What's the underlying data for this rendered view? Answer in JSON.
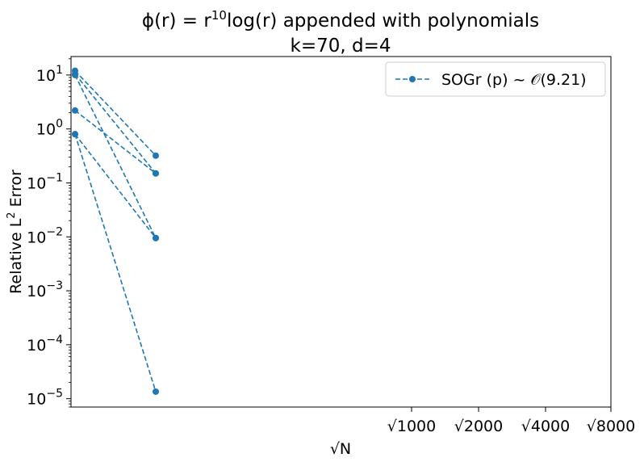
{
  "chart_data": {
    "type": "line",
    "title_line1_prefix": "ϕ(r) = r",
    "title_line1_sup": "10",
    "title_line1_suffix": "log(r) appended with polynomials",
    "title_line2": "k=70, d=4",
    "xlabel": "√N",
    "ylabel_prefix": "Relative L",
    "ylabel_sup": "2",
    "ylabel_suffix": " Error",
    "yscale": "log",
    "ylim": [
      7e-06,
      22
    ],
    "xticks": [
      "√1000",
      "√2000",
      "√4000",
      "√8000"
    ],
    "yticks": [
      {
        "base": "10",
        "exp": "1",
        "value": 10
      },
      {
        "base": "10",
        "exp": "0",
        "value": 1
      },
      {
        "base": "10",
        "exp": "−1",
        "value": 0.1
      },
      {
        "base": "10",
        "exp": "−2",
        "value": 0.01
      },
      {
        "base": "10",
        "exp": "−3",
        "value": 0.001
      },
      {
        "base": "10",
        "exp": "−4",
        "value": 0.0001
      },
      {
        "base": "10",
        "exp": "−5",
        "value": 1e-05
      }
    ],
    "legend": {
      "position": "top-right",
      "label": "SOGr (p) ~ 𝒪(9.21)"
    },
    "color": "#1f77b4",
    "segments": [
      {
        "y": [
          12.0,
          0.32
        ]
      },
      {
        "y": [
          10.5,
          0.15
        ]
      },
      {
        "y": [
          10.0,
          0.0095
        ]
      },
      {
        "y": [
          2.2,
          0.15
        ]
      },
      {
        "y": [
          0.8,
          0.0095
        ]
      },
      {
        "y": [
          0.8,
          1.35e-05
        ]
      }
    ]
  }
}
